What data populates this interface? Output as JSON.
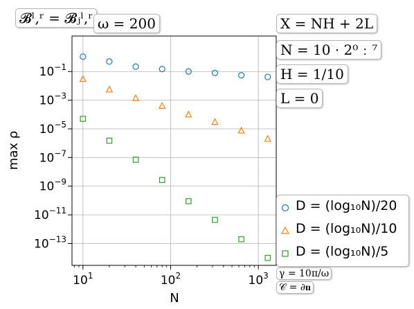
{
  "chart_data": {
    "type": "scatter",
    "xlabel": "N",
    "ylabel": "max ρ",
    "xscale": "log",
    "yscale": "log",
    "xlim": [
      7.5,
      1600
    ],
    "ylim": [
      3e-15,
      30
    ],
    "grid": true,
    "legend_position": "right",
    "x_tick_labels": [
      {
        "value": 10,
        "base": "10",
        "exp": "1"
      },
      {
        "value": 100,
        "base": "10",
        "exp": "2"
      },
      {
        "value": 1000,
        "base": "10",
        "exp": "3"
      }
    ],
    "y_tick_labels": [
      {
        "value": 0.1,
        "base": "10",
        "exp": "−1"
      },
      {
        "value": 0.001,
        "base": "10",
        "exp": "−3"
      },
      {
        "value": 1e-05,
        "base": "10",
        "exp": "−5"
      },
      {
        "value": 1e-07,
        "base": "10",
        "exp": "−7"
      },
      {
        "value": 1e-09,
        "base": "10",
        "exp": "−9"
      },
      {
        "value": 1e-11,
        "base": "10",
        "exp": "−11"
      },
      {
        "value": 1e-13,
        "base": "10",
        "exp": "−13"
      }
    ],
    "x": [
      10,
      20,
      40,
      80,
      160,
      320,
      640,
      1280
    ],
    "series": [
      {
        "name": "D = (log10N)/20",
        "marker": "circle",
        "color": "#1f77b4",
        "values": [
          1.1,
          0.5,
          0.22,
          0.15,
          0.1,
          0.08,
          0.055,
          0.042
        ]
      },
      {
        "name": "D = (log10N)/10",
        "marker": "triangle",
        "color": "#ff7f0e",
        "values": [
          0.03,
          0.0055,
          0.0014,
          0.0004,
          0.0001,
          3e-05,
          7.5e-06,
          2e-06
        ]
      },
      {
        "name": "D = (log10N)/5",
        "marker": "square",
        "color": "#2ca02c",
        "values": [
          5e-05,
          1.5e-06,
          7e-08,
          2.7e-09,
          9e-11,
          4.5e-12,
          2e-13,
          1e-14
        ]
      }
    ]
  },
  "annotations": {
    "basis": "𝓑ˡ,ʳ = 𝓑ⱼˡ,ʳ",
    "omega": "ω = 200",
    "x_def": "X = NH + 2L",
    "n_def": "N = 10 · 2⁰﹕⁷",
    "h_def": "H = 1/10",
    "l_def": "L = 0",
    "gamma": "γ = 10π/ω",
    "c_def": "𝒞 = ∂𝐧"
  },
  "legend": [
    {
      "label": "D = (log₁₀N)/20",
      "marker": "circle",
      "color": "#1f77b4"
    },
    {
      "label": "D = (log₁₀N)/10",
      "marker": "triangle",
      "color": "#ff7f0e"
    },
    {
      "label": "D = (log₁₀N)/5",
      "marker": "square",
      "color": "#2ca02c"
    }
  ]
}
